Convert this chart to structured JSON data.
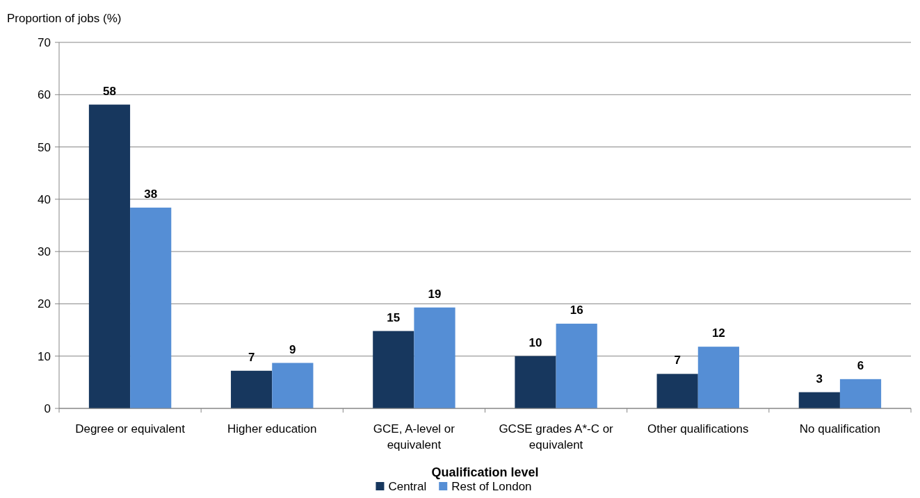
{
  "chart_data": {
    "type": "bar",
    "xlabel": "Qualification level",
    "ylabel": "Proportion of jobs (%)",
    "categories": [
      "Degree or equivalent",
      "Higher education",
      "GCE, A-level or equivalent",
      "GCSE grades A*-C or equivalent",
      "Other qualifications",
      "No qualification"
    ],
    "series": [
      {
        "name": "Central",
        "color": "#17375e",
        "values": [
          58.1,
          7.2,
          14.8,
          10,
          6.6,
          3.1
        ],
        "value_labels": [
          "58",
          "7",
          "15",
          "10",
          "7",
          "3"
        ]
      },
      {
        "name": "Rest of London",
        "color": "#558ed5",
        "values": [
          38.4,
          8.7,
          19.3,
          16.2,
          11.8,
          5.6
        ],
        "value_labels": [
          "38",
          "9",
          "19",
          "16",
          "12",
          "6"
        ]
      }
    ],
    "ylim": [
      0,
      70
    ],
    "yticks": [
      0,
      10,
      20,
      30,
      40,
      50,
      60,
      70
    ],
    "grid": "y",
    "legend": "bottom"
  }
}
